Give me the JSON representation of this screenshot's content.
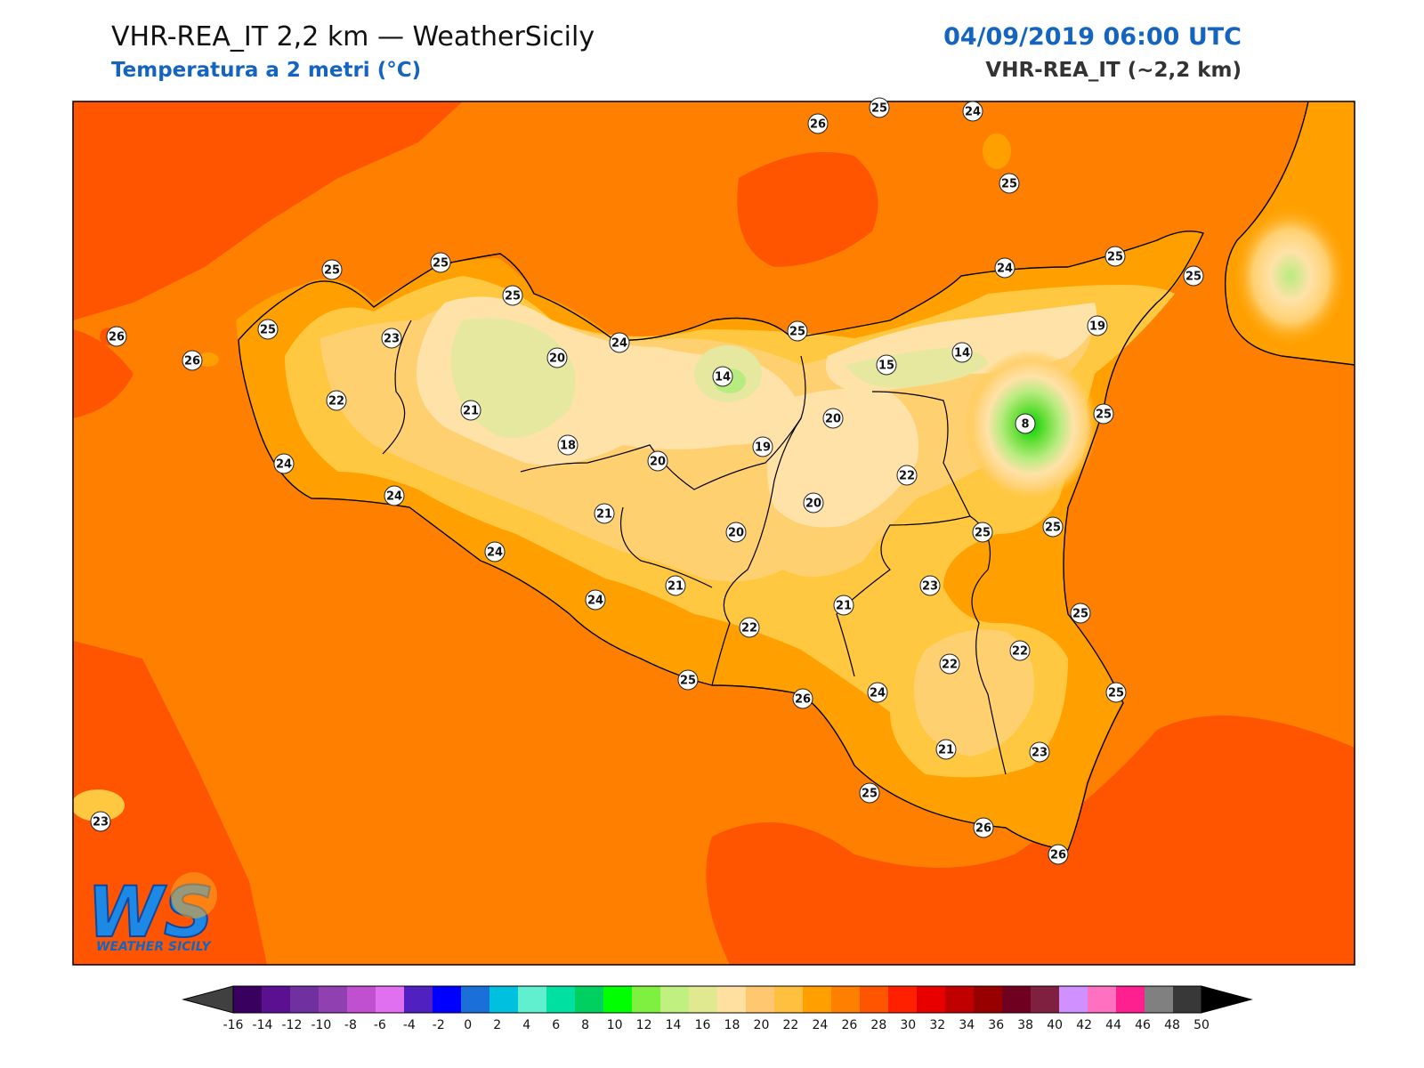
{
  "header": {
    "title": "VHR-REA_IT 2,2 km — WeatherSicily",
    "subtitle": "Temperatura a 2 metri (°C)",
    "datetime": "04/09/2019 06:00 UTC",
    "model": "VHR-REA_IT (~2,2 km)"
  },
  "logo": {
    "monogram": "WS",
    "text": "WEATHER SICILY"
  },
  "colors": {
    "sea_base": "#ff8000",
    "warm_26_28": "#ff5500",
    "temp_22_24": "#ffa000",
    "temp_20_22": "#ffc840",
    "temp_18_20": "#ffd070",
    "temp_16_18": "#ffe2a8",
    "temp_14_16": "#e6e8a0",
    "temp_12_14": "#b8ec80",
    "temp_10_12": "#70e040",
    "temp_8_10": "#00d000",
    "coast": "#000000",
    "title_blue": "#1565c0"
  },
  "colorbar": {
    "ticks": [
      "-16",
      "-14",
      "-12",
      "-10",
      "-8",
      "-6",
      "-4",
      "-2",
      "0",
      "2",
      "4",
      "6",
      "8",
      "10",
      "12",
      "14",
      "16",
      "18",
      "20",
      "22",
      "24",
      "26",
      "28",
      "30",
      "32",
      "34",
      "36",
      "38",
      "40",
      "42",
      "44",
      "46",
      "48",
      "50"
    ],
    "colors": [
      "#3a0060",
      "#5a1090",
      "#7030a0",
      "#9040b0",
      "#c050d0",
      "#e070f0",
      "#5020c0",
      "#0000ff",
      "#1a70d8",
      "#00c0e0",
      "#60f0d0",
      "#00e0a0",
      "#00d060",
      "#00ff00",
      "#80f040",
      "#c0f080",
      "#e0e890",
      "#ffe0a0",
      "#ffc870",
      "#ffc040",
      "#ffa000",
      "#ff8000",
      "#ff5500",
      "#ff2000",
      "#e80000",
      "#c00000",
      "#980000",
      "#700020",
      "#802040",
      "#d090ff",
      "#ff70c0",
      "#ff2090",
      "#808080",
      "#383838"
    ],
    "min_color": "#404040",
    "max_color": "#000000"
  },
  "stations": [
    {
      "value": "26"
    },
    {
      "value": "25"
    },
    {
      "value": "24"
    },
    {
      "value": "25"
    },
    {
      "value": "25"
    },
    {
      "value": "25"
    },
    {
      "value": "25"
    },
    {
      "value": "26"
    },
    {
      "value": "25"
    },
    {
      "value": "26"
    },
    {
      "value": "23"
    },
    {
      "value": "25"
    },
    {
      "value": "22"
    },
    {
      "value": "24"
    },
    {
      "value": "24"
    },
    {
      "value": "21"
    },
    {
      "value": "20"
    },
    {
      "value": "24"
    },
    {
      "value": "14"
    },
    {
      "value": "25"
    },
    {
      "value": "14"
    },
    {
      "value": "15"
    },
    {
      "value": "24"
    },
    {
      "value": "19"
    },
    {
      "value": "25"
    },
    {
      "value": "25"
    },
    {
      "value": "8"
    },
    {
      "value": "20"
    },
    {
      "value": "19"
    },
    {
      "value": "18"
    },
    {
      "value": "20"
    },
    {
      "value": "22"
    },
    {
      "value": "21"
    },
    {
      "value": "20"
    },
    {
      "value": "20"
    },
    {
      "value": "25"
    },
    {
      "value": "25"
    },
    {
      "value": "24"
    },
    {
      "value": "21"
    },
    {
      "value": "23"
    },
    {
      "value": "24"
    },
    {
      "value": "21"
    },
    {
      "value": "22"
    },
    {
      "value": "25"
    },
    {
      "value": "22"
    },
    {
      "value": "22"
    },
    {
      "value": "25"
    },
    {
      "value": "24"
    },
    {
      "value": "26"
    },
    {
      "value": "25"
    },
    {
      "value": "21"
    },
    {
      "value": "23"
    },
    {
      "value": "25"
    },
    {
      "value": "26"
    },
    {
      "value": "26"
    },
    {
      "value": "23"
    }
  ]
}
